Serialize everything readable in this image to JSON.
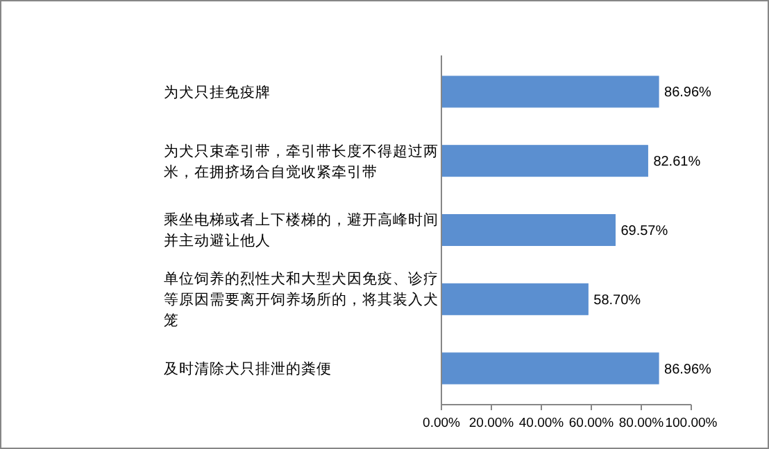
{
  "chart_data": {
    "type": "bar",
    "orientation": "horizontal",
    "categories": [
      "为犬只挂免疫牌",
      "为犬只束牵引带，牵引带长度不得超过两米，在拥挤场合自觉收紧牵引带",
      "乘坐电梯或者上下楼梯的，避开高峰时间并主动避让他人",
      "单位饲养的烈性犬和大型犬因免疫、诊疗等原因需要离开饲养场所的，将其装入犬笼",
      "及时清除犬只排泄的粪便"
    ],
    "values": [
      86.96,
      82.61,
      69.57,
      58.7,
      86.96
    ],
    "value_labels": [
      "86.96%",
      "82.61%",
      "69.57%",
      "58.70%",
      "86.96%"
    ],
    "color": "#5b8fd0",
    "xlim": [
      0,
      100
    ],
    "xticks": [
      {
        "value": 0,
        "label": "0.00%"
      },
      {
        "value": 20,
        "label": "20.00%"
      },
      {
        "value": 40,
        "label": "40.00%"
      },
      {
        "value": 60,
        "label": "60.00%"
      },
      {
        "value": 80,
        "label": "80.00%"
      },
      {
        "value": 100,
        "label": "100.00%"
      }
    ],
    "grid": false
  }
}
